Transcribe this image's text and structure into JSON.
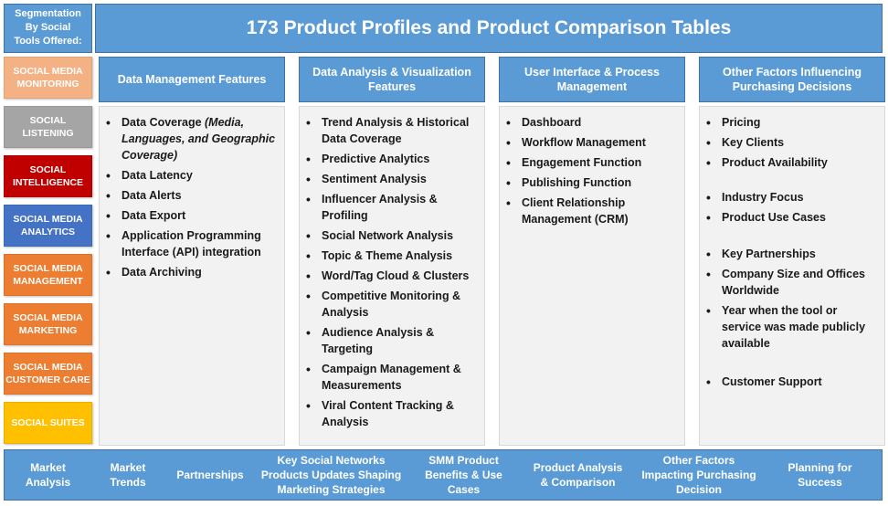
{
  "segmentation_header": "Segmentation\nBy Social\nTools Offered:",
  "title": "173 Product Profiles and Product Comparison Tables",
  "segments": [
    {
      "label": "SOCIAL MEDIA\nMONITORING",
      "color": "#f4b183"
    },
    {
      "label": "SOCIAL\nLISTENING",
      "color": "#a5a5a5"
    },
    {
      "label": "SOCIAL\nINTELLIGENCE",
      "color": "#c00000"
    },
    {
      "label": "SOCIAL MEDIA\nANALYTICS",
      "color": "#4472c4"
    },
    {
      "label": "SOCIAL MEDIA\nMANAGEMENT",
      "color": "#ed7d31"
    },
    {
      "label": "SOCIAL MEDIA\nMARKETING",
      "color": "#ed7d31"
    },
    {
      "label": "SOCIAL MEDIA\nCUSTOMER CARE",
      "color": "#ed7d31"
    },
    {
      "label": "SOCIAL SUITES",
      "color": "#ffc000"
    }
  ],
  "columns": [
    {
      "header": "Data Management Features",
      "items": [
        {
          "text": "Data Coverage ",
          "italic": "(Media, Languages, and Geographic Coverage)"
        },
        {
          "text": "Data Latency"
        },
        {
          "text": "Data Alerts"
        },
        {
          "text": "Data Export"
        },
        {
          "text": "Application Programming Interface (API) integration"
        },
        {
          "text": "Data Archiving"
        }
      ]
    },
    {
      "header": "Data Analysis & Visualization Features",
      "items": [
        {
          "text": "Trend Analysis & Historical Data Coverage"
        },
        {
          "text": "Predictive Analytics"
        },
        {
          "text": "Sentiment Analysis"
        },
        {
          "text": "Influencer Analysis & Profiling"
        },
        {
          "text": "Social Network Analysis"
        },
        {
          "text": "Topic & Theme Analysis"
        },
        {
          "text": "Word/Tag Cloud & Clusters"
        },
        {
          "text": "Competitive Monitoring & Analysis"
        },
        {
          "text": "Audience Analysis & Targeting"
        },
        {
          "text": "Campaign Management & Measurements"
        },
        {
          "text": "Viral Content Tracking & Analysis"
        }
      ]
    },
    {
      "header": "User Interface & Process Management",
      "items": [
        {
          "text": "Dashboard"
        },
        {
          "text": "Workflow Management"
        },
        {
          "text": "Engagement Function"
        },
        {
          "text": "Publishing Function"
        },
        {
          "text": "Client Relationship Management (CRM)"
        }
      ]
    },
    {
      "header": "Other Factors Influencing Purchasing Decisions",
      "items": [
        {
          "text": "Pricing"
        },
        {
          "text": "Key Clients"
        },
        {
          "text": "Product Availability"
        },
        {
          "text": "Industry Focus",
          "gap": "gap"
        },
        {
          "text": "Product Use Cases"
        },
        {
          "text": "Key Partnerships",
          "gap": "gap2"
        },
        {
          "text": "Company Size and Offices Worldwide"
        },
        {
          "text": "Year when the tool or service was made publicly available"
        },
        {
          "text": "Customer Support",
          "gap": "gap3"
        }
      ]
    }
  ],
  "footer": [
    "Market\nAnalysis",
    "Market\nTrends",
    "Partnerships",
    "Key Social Networks\nProducts Updates Shaping\nMarketing Strategies",
    "SMM Product\nBenefits & Use\nCases",
    "Product Analysis\n& Comparison",
    "Other Factors\nImpacting Purchasing\nDecision",
    "Planning for\nSuccess"
  ]
}
